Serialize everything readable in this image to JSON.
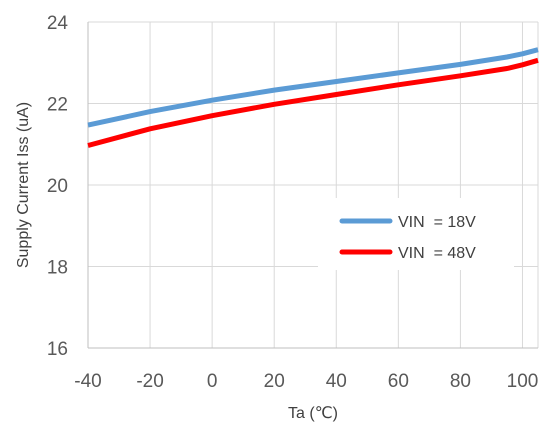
{
  "chart_data": {
    "type": "line",
    "xlabel": "Ta (℃)",
    "ylabel": "Supply Current Iss (uA)",
    "xlim": [
      -40,
      105
    ],
    "ylim": [
      16,
      24
    ],
    "x_ticks": [
      -40,
      -20,
      0,
      20,
      40,
      60,
      80,
      100
    ],
    "y_ticks": [
      16,
      18,
      20,
      22,
      24
    ],
    "grid": true,
    "legend_position": "right",
    "series": [
      {
        "name": "VIN  = 18V",
        "color": "#5B9BD5",
        "x": [
          -40,
          -20,
          0,
          20,
          40,
          60,
          80,
          95,
          100,
          105
        ],
        "y": [
          21.47,
          21.8,
          22.08,
          22.33,
          22.54,
          22.75,
          22.96,
          23.14,
          23.22,
          23.32
        ]
      },
      {
        "name": "VIN  = 48V",
        "color": "#FF0000",
        "x": [
          -40,
          -20,
          0,
          20,
          40,
          60,
          80,
          95,
          100,
          105
        ],
        "y": [
          20.97,
          21.38,
          21.7,
          21.98,
          22.22,
          22.46,
          22.68,
          22.86,
          22.95,
          23.06
        ]
      }
    ]
  }
}
